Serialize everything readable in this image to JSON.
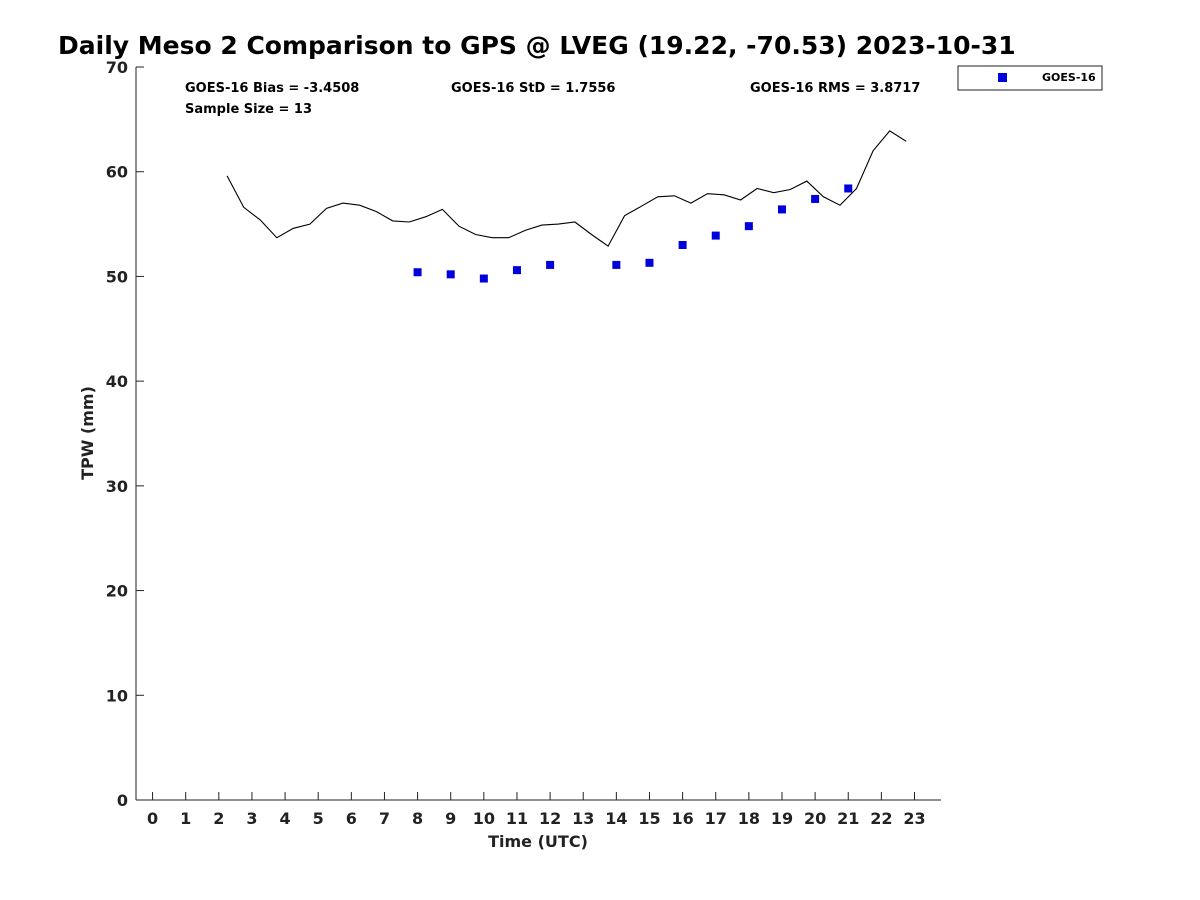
{
  "chart_data": {
    "type": "scatter",
    "title": "Daily Meso 2 Comparison to GPS @ LVEG (19.22, -70.53) 2023-10-31",
    "xlabel": "Time (UTC)",
    "ylabel": "TPW (mm)",
    "xlim": [
      -0.5,
      23.8
    ],
    "ylim": [
      0,
      70
    ],
    "x_ticks": [
      "0",
      "1",
      "2",
      "3",
      "4",
      "5",
      "6",
      "7",
      "8",
      "9",
      "10",
      "11",
      "12",
      "13",
      "14",
      "15",
      "16",
      "17",
      "18",
      "19",
      "20",
      "21",
      "22",
      "23"
    ],
    "y_ticks": [
      "0",
      "10",
      "20",
      "30",
      "40",
      "50",
      "60",
      "70"
    ],
    "stats": {
      "bias": "GOES-16 Bias = -3.4508",
      "std": "GOES-16 StD = 1.7556",
      "rms": "GOES-16 RMS = 3.8717",
      "sample": "Sample Size = 13"
    },
    "legend": {
      "position": "top-right-outside",
      "entries": [
        "GOES-16"
      ]
    },
    "colors": {
      "goes": "#0000dd",
      "gps": "#000000"
    },
    "series": [
      {
        "name": "GOES-16",
        "kind": "markers",
        "x": [
          8,
          9,
          10,
          11,
          12,
          14,
          15,
          16,
          17,
          18,
          19,
          20,
          21
        ],
        "y": [
          50.4,
          50.2,
          49.8,
          50.6,
          51.1,
          51.1,
          51.3,
          53.0,
          53.9,
          54.8,
          56.4,
          57.4,
          58.4
        ]
      },
      {
        "kind": "line",
        "x": [
          2.25,
          2.75,
          3.25,
          3.75,
          4.25,
          4.75,
          5.25,
          5.75,
          6.25,
          6.75,
          7.25,
          7.75,
          8.25,
          8.75,
          9.25,
          9.75,
          10.25,
          10.75,
          11.25,
          11.75,
          12.25,
          12.75,
          13.25,
          13.75,
          14.25,
          14.75,
          15.25,
          15.75,
          16.25,
          16.75,
          17.25,
          17.75,
          18.25,
          18.75,
          19.25,
          19.75,
          20.25,
          20.75,
          21.25,
          21.75,
          22.25,
          22.75
        ],
        "y": [
          59.6,
          56.6,
          55.4,
          53.7,
          54.6,
          55.0,
          56.5,
          57.0,
          56.8,
          56.2,
          55.3,
          55.2,
          55.7,
          56.4,
          54.8,
          54.0,
          53.7,
          53.7,
          54.4,
          54.9,
          55.0,
          55.2,
          54.0,
          52.9,
          55.8,
          56.7,
          57.6,
          57.7,
          57.0,
          57.9,
          57.8,
          57.3,
          58.4,
          58.0,
          58.3,
          59.1,
          57.6,
          56.8,
          58.4,
          62.0,
          63.9,
          62.9
        ]
      }
    ]
  }
}
